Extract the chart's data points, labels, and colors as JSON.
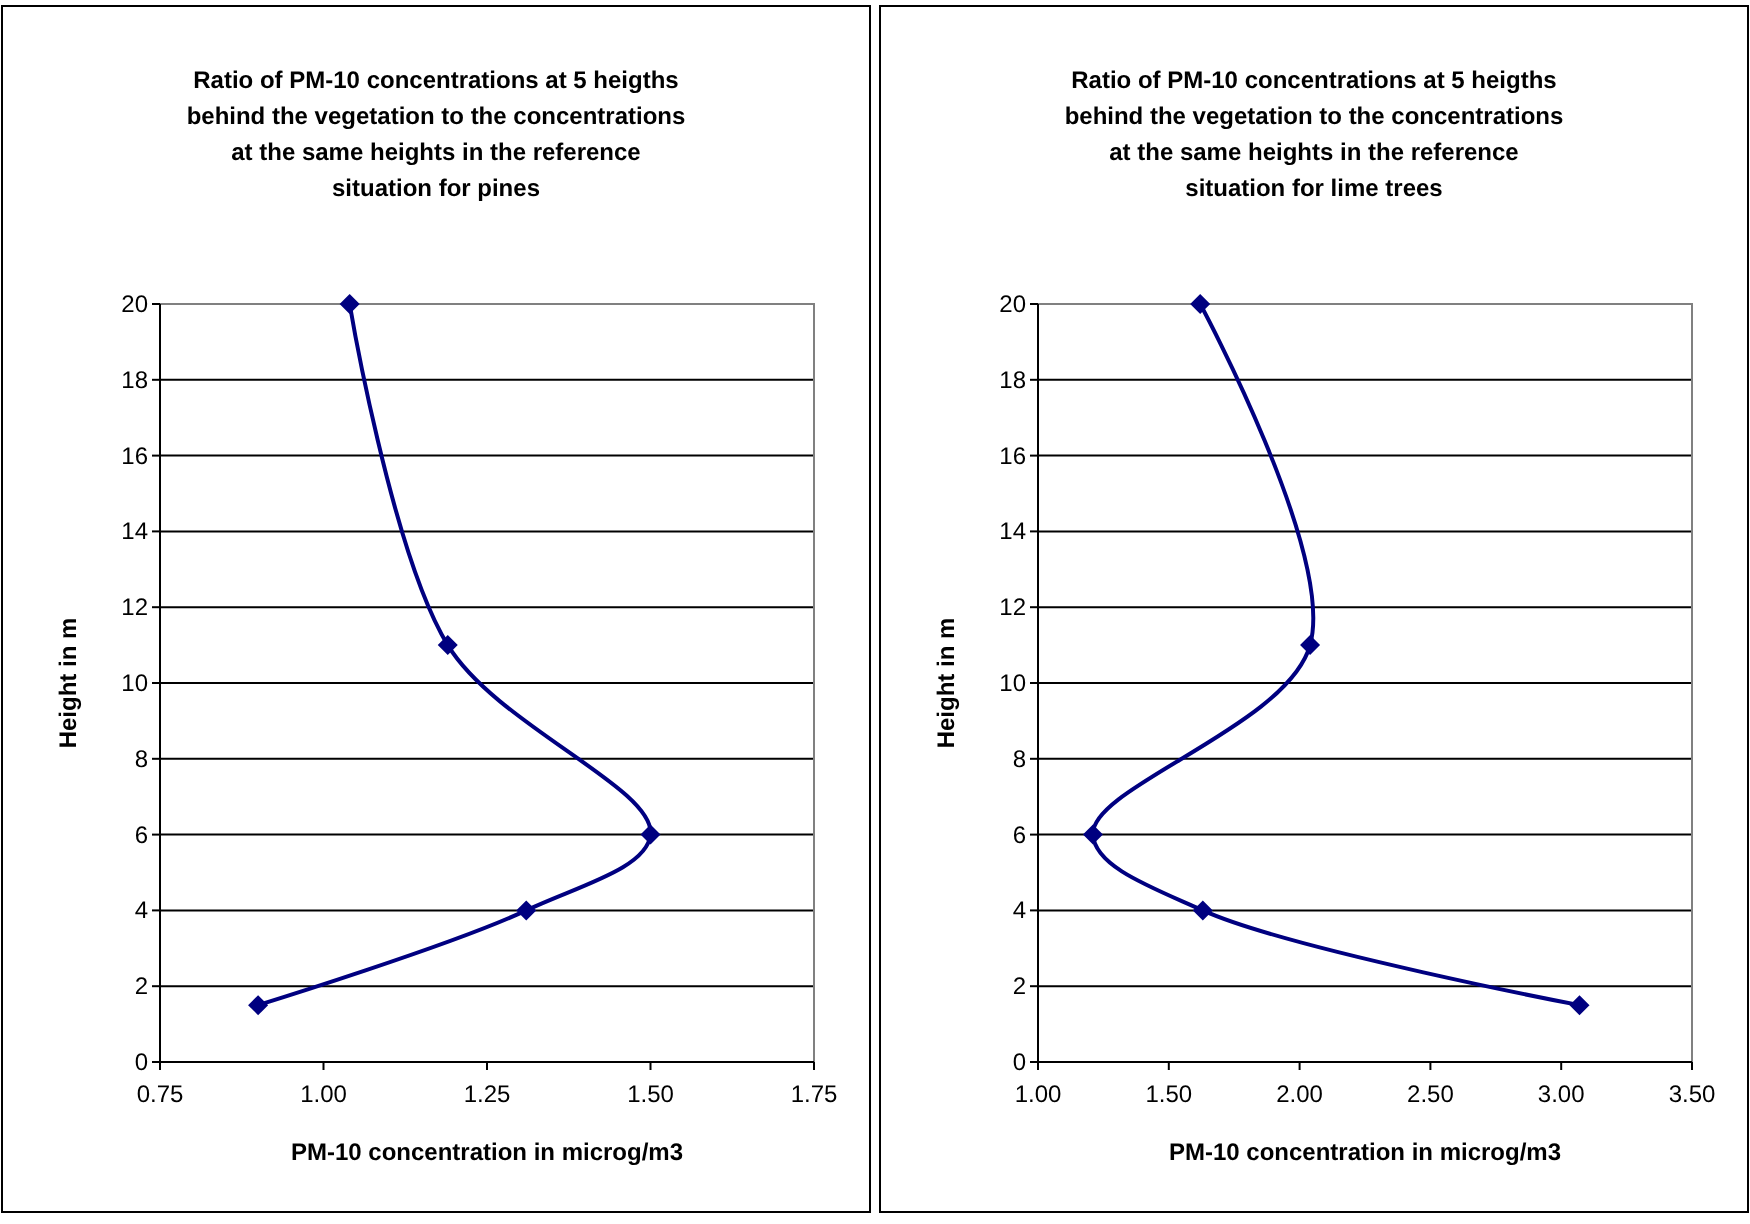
{
  "chart_data": [
    {
      "type": "line",
      "title": "Ratio of PM-10 concentrations at 5 heigths behind the vegetation to the concentrations at the same heights in the reference situation for pines",
      "xlabel": "PM-10 concentration in microg/m3",
      "ylabel": "Height in m",
      "marker": "diamond",
      "line_style": "solid",
      "grid": "y",
      "x": [
        0.9,
        1.31,
        1.5,
        1.19,
        1.04
      ],
      "series": [
        {
          "color": "#000080",
          "values": [
            1.5,
            4,
            6,
            11,
            20
          ]
        }
      ],
      "xlim": [
        0.75,
        1.75
      ],
      "xticks": [
        {
          "value": 0.75,
          "label": "0.75"
        },
        {
          "value": 1,
          "label": "1.00"
        },
        {
          "value": 1.25,
          "label": "1.25"
        },
        {
          "value": 1.5,
          "label": "1.50"
        },
        {
          "value": 1.75,
          "label": "1.75"
        }
      ],
      "ylim": [
        0,
        20
      ],
      "yticks": [
        0,
        2,
        4,
        6,
        8,
        10,
        12,
        14,
        16,
        18,
        20
      ]
    },
    {
      "type": "line",
      "title": "Ratio of PM-10 concentrations at 5 heigths behind the vegetation to the concentrations at the same heights in the reference situation for lime trees",
      "xlabel": "PM-10 concentration in microg/m3",
      "ylabel": "Height in m",
      "marker": "diamond",
      "line_style": "solid",
      "grid": "y",
      "x": [
        3.07,
        1.63,
        1.21,
        2.04,
        1.62
      ],
      "series": [
        {
          "color": "#000080",
          "values": [
            1.5,
            4,
            6,
            11,
            20
          ]
        }
      ],
      "xlim": [
        1,
        3.5
      ],
      "xticks": [
        {
          "value": 1,
          "label": "1.00"
        },
        {
          "value": 1.5,
          "label": "1.50"
        },
        {
          "value": 2,
          "label": "2.00"
        },
        {
          "value": 2.5,
          "label": "2.50"
        },
        {
          "value": 3,
          "label": "3.00"
        },
        {
          "value": 3.5,
          "label": "3.50"
        }
      ],
      "ylim": [
        0,
        20
      ],
      "yticks": [
        0,
        2,
        4,
        6,
        8,
        10,
        12,
        14,
        16,
        18,
        20
      ]
    }
  ]
}
